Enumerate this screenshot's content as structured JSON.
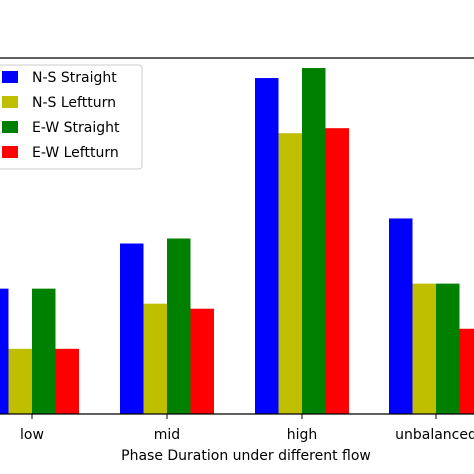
{
  "chart_data": {
    "type": "bar",
    "title": "",
    "xlabel": "Phase Duration under different flow",
    "ylabel": "",
    "categories": [
      "low",
      "mid",
      "high",
      "unbalanced"
    ],
    "series": [
      {
        "name": "N-S Straight",
        "color": "#0000ff",
        "values": [
          25,
          34,
          67,
          39
        ]
      },
      {
        "name": "N-S Leftturn",
        "color": "#bfbf00",
        "values": [
          13,
          22,
          56,
          26
        ]
      },
      {
        "name": "E-W Straight",
        "color": "#008000",
        "values": [
          25,
          35,
          69,
          26
        ]
      },
      {
        "name": "E-W Leftturn",
        "color": "#ff0000",
        "values": [
          13,
          21,
          57,
          17
        ]
      }
    ],
    "ylim": [
      0,
      71
    ],
    "grid": false,
    "legend_position": "top-left"
  }
}
